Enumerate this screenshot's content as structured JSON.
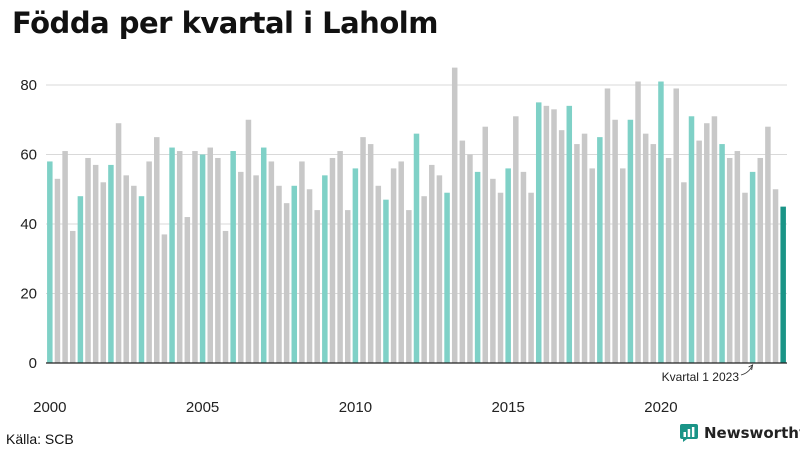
{
  "title": "Födda per kvartal i Laholm",
  "source": "Källa: SCB",
  "brand": {
    "name": "Newsworthy",
    "icon": "newsworthy-logo-icon"
  },
  "colors": {
    "q1": "#7fd1c7",
    "other": "#c8c8c8",
    "highlight": "#1a9487",
    "grid": "#d9d9d9",
    "axis": "#222222"
  },
  "chart_data": {
    "type": "bar",
    "title": "Födda per kvartal i Laholm",
    "xlabel": "",
    "ylabel": "",
    "ylim": [
      0,
      90
    ],
    "yticks": [
      0,
      20,
      40,
      60,
      80
    ],
    "xticks": [
      "2000",
      "2005",
      "2010",
      "2015",
      "2020"
    ],
    "start_year": 2000,
    "grid": true,
    "annotation": "Kvartal 1 2023",
    "values": [
      58,
      53,
      61,
      38,
      48,
      59,
      57,
      52,
      57,
      69,
      54,
      51,
      48,
      58,
      65,
      37,
      62,
      61,
      42,
      61,
      60,
      62,
      59,
      38,
      61,
      55,
      70,
      54,
      62,
      58,
      51,
      46,
      51,
      58,
      50,
      44,
      54,
      59,
      61,
      44,
      56,
      65,
      63,
      51,
      47,
      56,
      58,
      44,
      66,
      48,
      57,
      54,
      49,
      85,
      64,
      60,
      55,
      68,
      53,
      49,
      56,
      71,
      55,
      49,
      75,
      74,
      73,
      67,
      74,
      63,
      66,
      56,
      65,
      79,
      70,
      56,
      70,
      81,
      66,
      63,
      81,
      59,
      79,
      52,
      71,
      64,
      69,
      71,
      63,
      59,
      61,
      49,
      55,
      59,
      68,
      50,
      45
    ]
  }
}
